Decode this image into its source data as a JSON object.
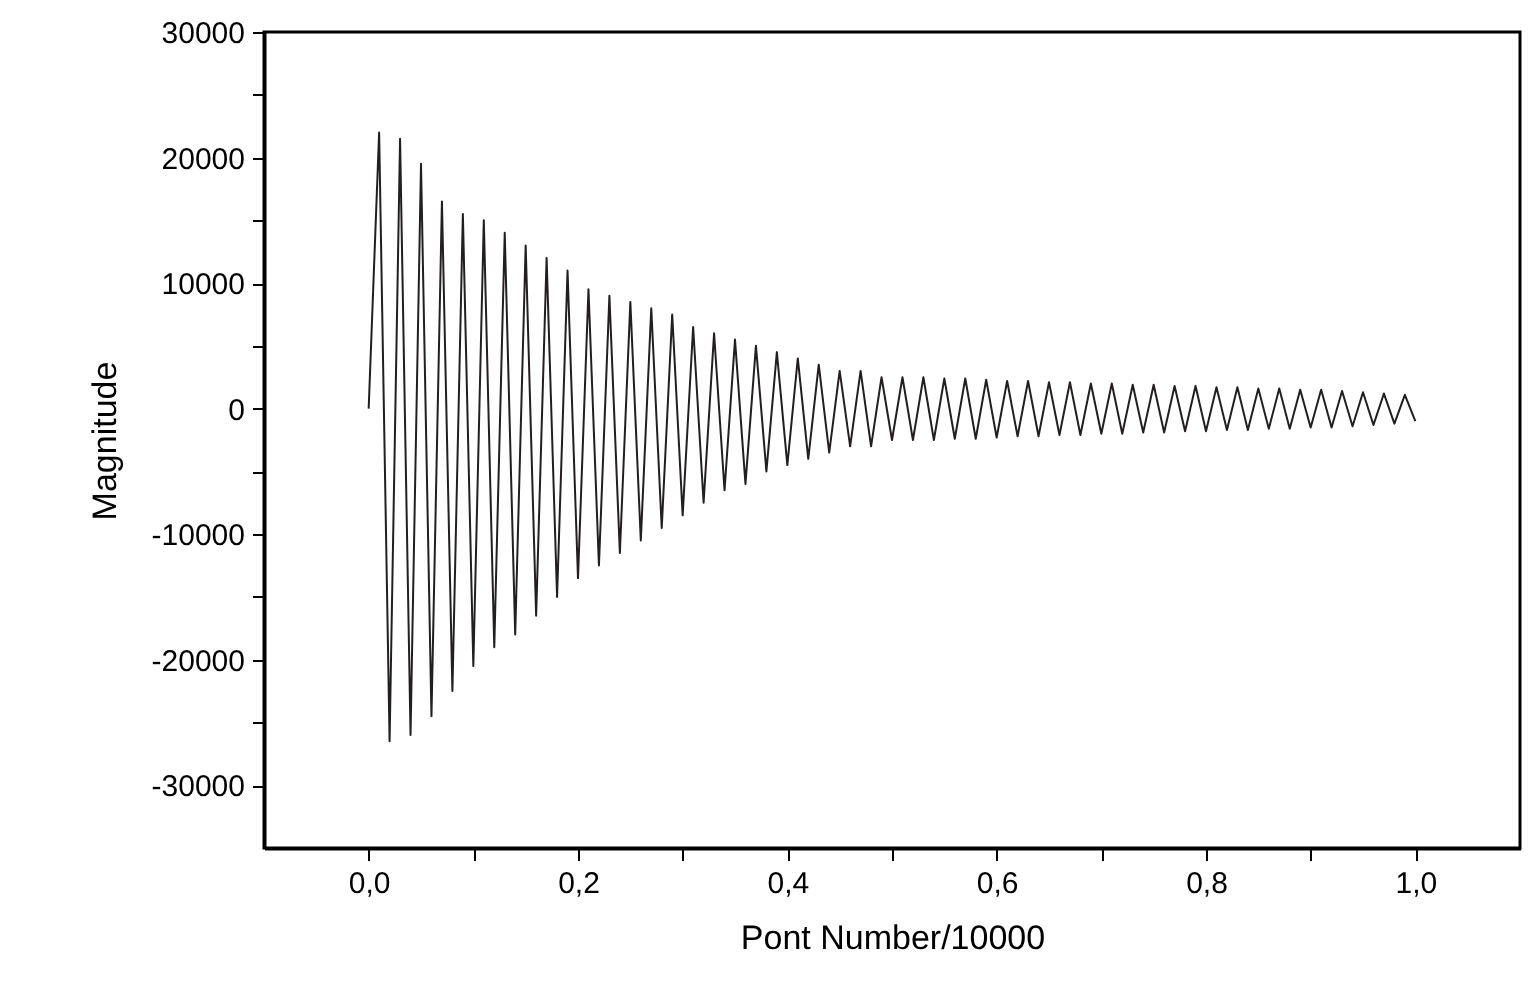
{
  "chart_data": {
    "type": "line",
    "xlabel": "Pont Number/10000",
    "ylabel": "Magnitude",
    "xlim": [
      -0.1,
      1.1
    ],
    "ylim": [
      -35000,
      30000
    ],
    "xticks": [
      {
        "value": 0,
        "label": "0,0"
      },
      {
        "value": 0.1,
        "label": null
      },
      {
        "value": 0.2,
        "label": "0,2"
      },
      {
        "value": 0.3,
        "label": null
      },
      {
        "value": 0.4,
        "label": "0,4"
      },
      {
        "value": 0.5,
        "label": null
      },
      {
        "value": 0.6,
        "label": "0,6"
      },
      {
        "value": 0.7,
        "label": null
      },
      {
        "value": 0.8,
        "label": "0,8"
      },
      {
        "value": 0.9,
        "label": null
      },
      {
        "value": 1.0,
        "label": "1,0"
      }
    ],
    "yticks": [
      -30000,
      {
        "value": -25000,
        "label": null
      },
      -20000,
      {
        "value": -15000,
        "label": null
      },
      -10000,
      {
        "value": -5000,
        "label": null
      },
      0,
      {
        "value": 5000,
        "label": null
      },
      10000,
      {
        "value": 15000,
        "label": null
      },
      20000,
      {
        "value": 25000,
        "label": null
      },
      30000
    ],
    "grid": false,
    "marker": "none",
    "line_style": "solid",
    "x": [
      0.0,
      0.01,
      0.02,
      0.03,
      0.04,
      0.05,
      0.06,
      0.07,
      0.08,
      0.09,
      0.1,
      0.11,
      0.12,
      0.13,
      0.14,
      0.15,
      0.16,
      0.17,
      0.18,
      0.19,
      0.2,
      0.21,
      0.22,
      0.23,
      0.24,
      0.25,
      0.26,
      0.27,
      0.28,
      0.29,
      0.3,
      0.31,
      0.32,
      0.33,
      0.34,
      0.35,
      0.36,
      0.37,
      0.38,
      0.39,
      0.4,
      0.41,
      0.42,
      0.43,
      0.44,
      0.45,
      0.46,
      0.47,
      0.48,
      0.49,
      0.5,
      0.51,
      0.52,
      0.53,
      0.54,
      0.55,
      0.56,
      0.57,
      0.58,
      0.59,
      0.6,
      0.61,
      0.62,
      0.63,
      0.64,
      0.65,
      0.66,
      0.67,
      0.68,
      0.69,
      0.7,
      0.71,
      0.72,
      0.73,
      0.74,
      0.75,
      0.76,
      0.77,
      0.78,
      0.79,
      0.8,
      0.81,
      0.82,
      0.83,
      0.84,
      0.85,
      0.86,
      0.87,
      0.88,
      0.89,
      0.9,
      0.91,
      0.92,
      0.93,
      0.94,
      0.95,
      0.96,
      0.97,
      0.98,
      0.99,
      1.0
    ],
    "series": [
      {
        "color": "#231f20",
        "values": [
          0,
          22000,
          -26500,
          21500,
          -26000,
          19500,
          -24500,
          16500,
          -22500,
          15500,
          -20500,
          15000,
          -19000,
          14000,
          -18000,
          13000,
          -16500,
          12000,
          -15000,
          11000,
          -13500,
          9500,
          -12500,
          9000,
          -11500,
          8500,
          -10500,
          8000,
          -9500,
          7500,
          -8500,
          6500,
          -7500,
          6000,
          -6500,
          5500,
          -6000,
          5000,
          -5000,
          4500,
          -4500,
          4000,
          -4000,
          3500,
          -3500,
          3000,
          -3000,
          3000,
          -3000,
          2500,
          -2500,
          2500,
          -2500,
          2500,
          -2500,
          2400,
          -2400,
          2400,
          -2400,
          2300,
          -2300,
          2200,
          -2200,
          2200,
          -2200,
          2100,
          -2100,
          2100,
          -2100,
          2000,
          -2000,
          2000,
          -2000,
          1900,
          -1900,
          1900,
          -1900,
          1800,
          -1800,
          1800,
          -1800,
          1700,
          -1700,
          1700,
          -1700,
          1600,
          -1600,
          1600,
          -1600,
          1500,
          -1500,
          1500,
          -1500,
          1400,
          -1400,
          1300,
          -1300,
          1200,
          -1200,
          1100,
          -1000
        ]
      }
    ]
  }
}
